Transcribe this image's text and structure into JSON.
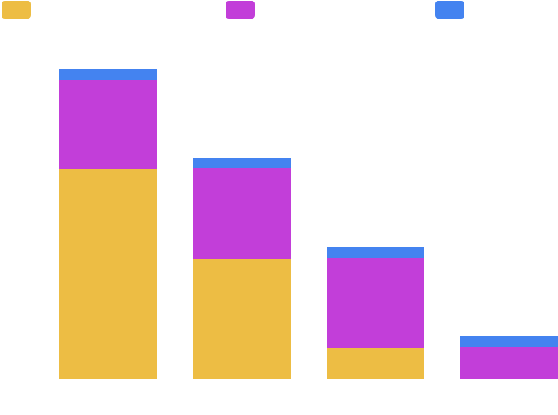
{
  "chart_data": {
    "type": "bar",
    "stacked": true,
    "title": "",
    "xlabel": "",
    "ylabel": "",
    "categories": [
      "",
      "",
      "",
      ""
    ],
    "ylim": [
      0,
      380
    ],
    "grid": false,
    "legend": "top",
    "series": [
      {
        "color": "#EDBD44",
        "values": [
          258,
          148,
          38,
          0
        ]
      },
      {
        "color": "#C23ED9",
        "values": [
          110,
          111,
          111,
          40
        ]
      },
      {
        "color": "#4483F0",
        "values": [
          13,
          13,
          13,
          13
        ]
      }
    ]
  }
}
